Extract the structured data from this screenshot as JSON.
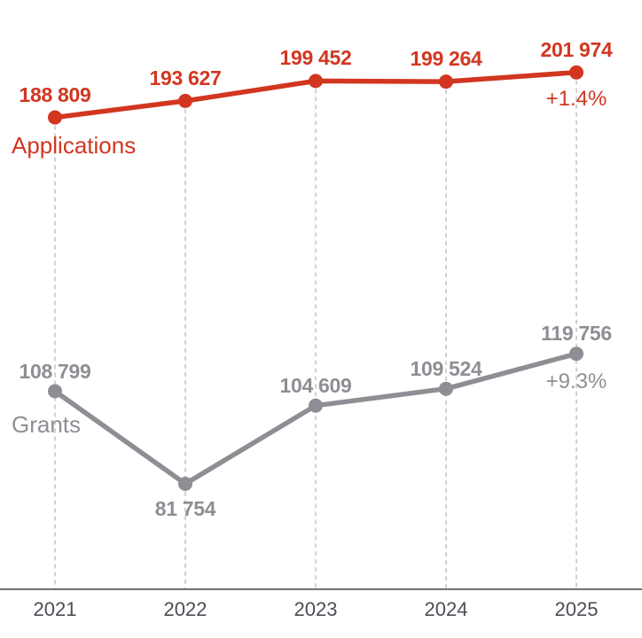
{
  "chart_data": {
    "type": "line",
    "x": [
      "2021",
      "2022",
      "2023",
      "2024",
      "2025"
    ],
    "series": [
      {
        "name": "Applications",
        "color": "#d23620",
        "values": [
          188809,
          193627,
          199452,
          199264,
          201974
        ],
        "labels": [
          "188 809",
          "193 627",
          "199 452",
          "199 264",
          "201 974"
        ],
        "change_label": "+1.4%"
      },
      {
        "name": "Grants",
        "color": "#8d8f94",
        "values": [
          108799,
          81754,
          104609,
          109524,
          119756
        ],
        "labels": [
          "108 799",
          "81 754",
          "104 609",
          "109 524",
          "119 756"
        ],
        "change_label": "+9.3%"
      }
    ],
    "title": "",
    "xlabel": "",
    "ylabel": "",
    "grid": "dashed-vertical-per-year",
    "legend_position": "inline-left-of-first-point",
    "axis_line_color": "#43444a",
    "gridline_color": "#b3b3b3",
    "year_label_color": "#4c4d55"
  }
}
